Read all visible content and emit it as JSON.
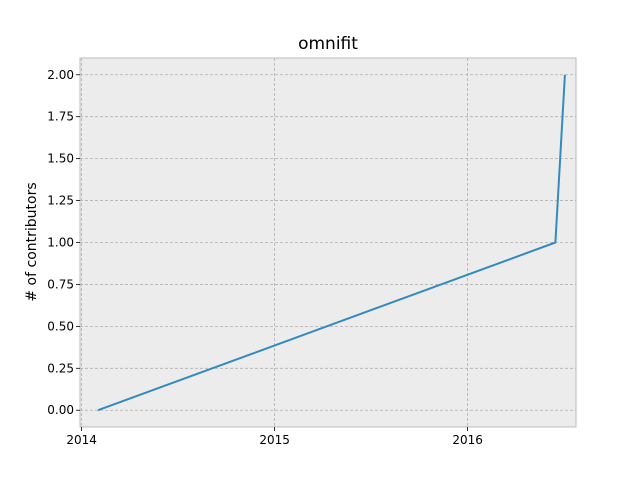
{
  "chart_data": {
    "type": "line",
    "title": "omnifit",
    "xlabel": "",
    "ylabel": "# of contributors",
    "x_type": "date",
    "xlim": [
      "2013-12-29",
      "2016-07-24"
    ],
    "ylim": [
      -0.1,
      2.1
    ],
    "xticks": [
      {
        "value": "2014-01-01",
        "label": "2014"
      },
      {
        "value": "2015-01-01",
        "label": "2015"
      },
      {
        "value": "2016-01-01",
        "label": "2016"
      }
    ],
    "yticks": [
      {
        "value": 0.0,
        "label": "0.00"
      },
      {
        "value": 0.25,
        "label": "0.25"
      },
      {
        "value": 0.5,
        "label": "0.50"
      },
      {
        "value": 0.75,
        "label": "0.75"
      },
      {
        "value": 1.0,
        "label": "1.00"
      },
      {
        "value": 1.25,
        "label": "1.25"
      },
      {
        "value": 1.5,
        "label": "1.50"
      },
      {
        "value": 1.75,
        "label": "1.75"
      },
      {
        "value": 2.0,
        "label": "2.00"
      }
    ],
    "grid": true,
    "series": [
      {
        "color": "#348abd",
        "points": [
          {
            "x": "2014-02-01",
            "y": 0
          },
          {
            "x": "2016-06-15",
            "y": 1
          },
          {
            "x": "2016-07-03",
            "y": 2
          }
        ]
      }
    ]
  }
}
